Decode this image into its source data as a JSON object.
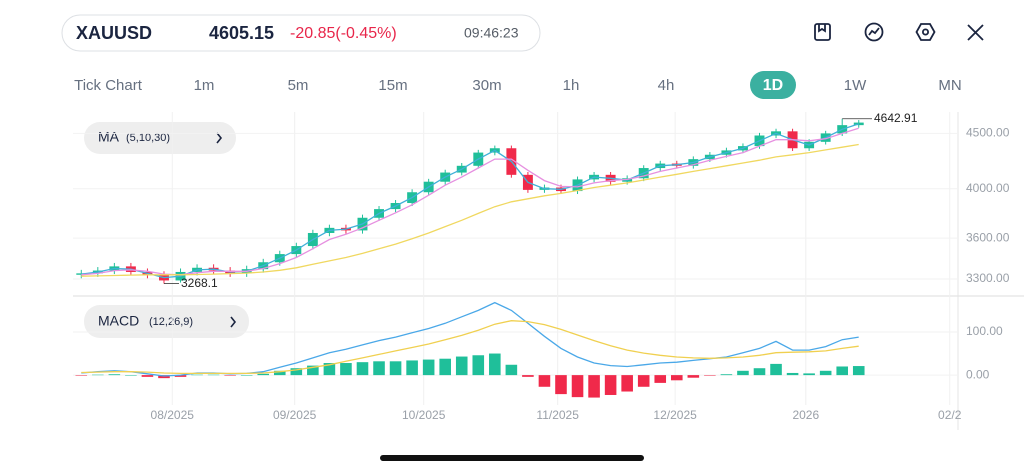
{
  "header": {
    "symbol": "XAUUSD",
    "price": "4605.15",
    "change": "-20.85(-0.45%)",
    "time": "09:46:23"
  },
  "timeframes": {
    "items": [
      "Tick Chart",
      "1m",
      "5m",
      "15m",
      "30m",
      "1h",
      "4h",
      "1D",
      "1W",
      "MN"
    ],
    "active": 7
  },
  "chart_data": {
    "type": "candlestick",
    "log_scale": true,
    "grid": true,
    "up_color": "#1fbf9a",
    "down_color": "#f0294a",
    "categories": [
      null,
      null,
      null,
      null,
      null,
      null,
      null,
      null,
      null,
      null,
      null,
      null,
      null,
      null,
      null,
      null,
      null,
      null,
      null,
      null,
      null,
      null,
      null,
      null,
      null,
      null,
      null,
      null,
      null,
      null,
      null,
      null,
      null,
      null,
      null,
      null,
      null,
      null,
      null,
      null,
      null,
      null,
      null,
      null,
      null,
      null,
      null,
      null
    ],
    "open": [
      3330,
      3340,
      3360,
      3390,
      3350,
      3330,
      3290,
      3350,
      3380,
      3360,
      3340,
      3370,
      3420,
      3480,
      3540,
      3640,
      3680,
      3660,
      3760,
      3830,
      3880,
      3970,
      4060,
      4140,
      4200,
      4320,
      4360,
      4120,
      3990,
      4010,
      3980,
      4080,
      4120,
      4060,
      4090,
      4180,
      4220,
      4200,
      4260,
      4300,
      4340,
      4380,
      4480,
      4520,
      4360,
      4420,
      4500,
      4580
    ],
    "high": [
      3365,
      3385,
      3415,
      3415,
      3375,
      3355,
      3375,
      3405,
      3405,
      3385,
      3395,
      3445,
      3505,
      3565,
      3665,
      3705,
      3705,
      3785,
      3855,
      3905,
      3995,
      4085,
      4165,
      4225,
      4345,
      4385,
      4385,
      4145,
      4035,
      4035,
      4105,
      4145,
      4145,
      4115,
      4205,
      4245,
      4245,
      4285,
      4325,
      4365,
      4405,
      4505,
      4545,
      4545,
      4445,
      4525,
      4642.91,
      4630
    ],
    "low": [
      3305,
      3315,
      3335,
      3325,
      3305,
      3268.1,
      3275,
      3325,
      3335,
      3315,
      3315,
      3345,
      3395,
      3455,
      3515,
      3615,
      3635,
      3635,
      3735,
      3805,
      3855,
      3945,
      4035,
      4115,
      4175,
      4295,
      4095,
      3965,
      3965,
      3955,
      3955,
      4055,
      4035,
      4035,
      4065,
      4155,
      4175,
      4175,
      4235,
      4275,
      4315,
      4355,
      4455,
      4335,
      4335,
      4395,
      4475,
      4555
    ],
    "close": [
      3340,
      3360,
      3390,
      3350,
      3330,
      3290,
      3350,
      3380,
      3360,
      3340,
      3370,
      3420,
      3480,
      3540,
      3640,
      3680,
      3660,
      3760,
      3830,
      3880,
      3970,
      4060,
      4140,
      4200,
      4320,
      4360,
      4120,
      3990,
      4010,
      3980,
      4080,
      4120,
      4060,
      4090,
      4180,
      4220,
      4200,
      4260,
      4300,
      4340,
      4380,
      4480,
      4520,
      4360,
      4420,
      4500,
      4580,
      4605
    ],
    "indicator": "MA",
    "indicator_params": "(5,10,30)",
    "series": [
      {
        "color": "#3fb0d8",
        "values": [
          3335,
          3350,
          3375,
          3370,
          3340,
          3310,
          3320,
          3365,
          3370,
          3350,
          3355,
          3395,
          3450,
          3510,
          3590,
          3660,
          3670,
          3710,
          3795,
          3855,
          3925,
          4015,
          4100,
          4170,
          4260,
          4340,
          4240,
          4055,
          4000,
          3995,
          4030,
          4100,
          4090,
          4075,
          4135,
          4200,
          4210,
          4230,
          4280,
          4320,
          4360,
          4430,
          4500,
          4440,
          4390,
          4460,
          4540,
          4592
        ]
      },
      {
        "color": "#e690e0",
        "values": [
          3330,
          3340,
          3360,
          3365,
          3355,
          3335,
          3330,
          3345,
          3355,
          3355,
          3355,
          3375,
          3410,
          3455,
          3520,
          3590,
          3630,
          3680,
          3740,
          3800,
          3865,
          3945,
          4030,
          4100,
          4180,
          4260,
          4260,
          4160,
          4070,
          4020,
          4015,
          4050,
          4070,
          4080,
          4110,
          4150,
          4180,
          4210,
          4250,
          4285,
          4320,
          4380,
          4440,
          4440,
          4430,
          4450,
          4500,
          4550
        ]
      },
      {
        "color": "#f0d860",
        "values": [
          3320,
          3322,
          3325,
          3328,
          3330,
          3330,
          3330,
          3332,
          3335,
          3338,
          3342,
          3350,
          3362,
          3380,
          3405,
          3430,
          3455,
          3485,
          3520,
          3555,
          3595,
          3640,
          3690,
          3740,
          3795,
          3850,
          3890,
          3915,
          3940,
          3960,
          3985,
          4010,
          4030,
          4050,
          4075,
          4100,
          4125,
          4150,
          4175,
          4200,
          4225,
          4250,
          4280,
          4300,
          4320,
          4345,
          4370,
          4395
        ]
      }
    ],
    "max_label": 4642.91,
    "min_label": 3268.1,
    "ylim": [
      3210,
      4710
    ],
    "yticks": [
      {
        "value": 3300,
        "label": "3300.00"
      },
      {
        "value": 3600,
        "label": "3600.00"
      },
      {
        "value": 4000,
        "label": "4000.00"
      },
      {
        "value": 4500,
        "label": "4500.00"
      }
    ],
    "xlim": [
      -0.5,
      53
    ],
    "xticks": [
      {
        "value": 5.5,
        "label": "08/2025"
      },
      {
        "value": 12.9,
        "label": "09/2025"
      },
      {
        "value": 20.7,
        "label": "10/2025"
      },
      {
        "value": 28.8,
        "label": "11/2025"
      },
      {
        "value": 35.9,
        "label": "12/2025"
      },
      {
        "value": 43.8,
        "label": "2026"
      },
      {
        "value": 52.5,
        "label": "02/2"
      }
    ],
    "macd": {
      "type": "macd",
      "indicator": "MACD",
      "indicator_params": "(12,26,9)",
      "series": [
        {
          "color": "#4aa8e8",
          "values": [
            5,
            8,
            10,
            8,
            3,
            -2,
            0,
            5,
            5,
            3,
            4,
            8,
            18,
            28,
            40,
            52,
            60,
            70,
            80,
            88,
            98,
            108,
            120,
            135,
            150,
            168,
            150,
            120,
            90,
            62,
            42,
            28,
            22,
            20,
            24,
            28,
            30,
            34,
            38,
            42,
            52,
            62,
            78,
            58,
            58,
            66,
            82,
            88
          ]
        },
        {
          "color": "#f0d050",
          "values": [
            6,
            7,
            8,
            8,
            7,
            5,
            4,
            4,
            4,
            4,
            4,
            5,
            8,
            12,
            18,
            24,
            32,
            40,
            48,
            56,
            64,
            72,
            82,
            92,
            104,
            118,
            126,
            124,
            117,
            106,
            93,
            80,
            68,
            58,
            51,
            46,
            42,
            40,
            39,
            40,
            42,
            46,
            52,
            53,
            54,
            56,
            62,
            67
          ]
        }
      ],
      "histogram": [
        -1,
        1,
        2,
        0,
        -4,
        -7,
        -4,
        1,
        1,
        -1,
        0,
        3,
        10,
        16,
        22,
        28,
        28,
        30,
        32,
        32,
        34,
        36,
        38,
        43,
        46,
        50,
        24,
        -4,
        -27,
        -44,
        -51,
        -52,
        -46,
        -38,
        -27,
        -18,
        -12,
        -6,
        -1,
        2,
        10,
        16,
        26,
        5,
        4,
        10,
        20,
        21
      ],
      "ylim": [
        -53,
        174
      ],
      "yticks": [
        {
          "value": 0,
          "label": "0.00"
        },
        {
          "value": 100,
          "label": "100.00"
        }
      ]
    }
  }
}
